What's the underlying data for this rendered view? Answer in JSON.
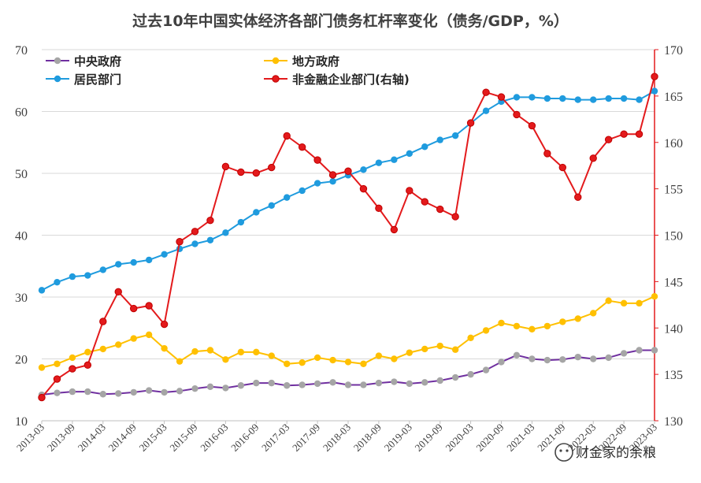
{
  "chart_data": {
    "type": "line",
    "title": "过去10年中国实体经济各部门债务杠杆率变化（债务/GDP，%）",
    "x": [
      "2013-03",
      "2013-06",
      "2013-09",
      "2013-12",
      "2014-03",
      "2014-06",
      "2014-09",
      "2014-12",
      "2015-03",
      "2015-06",
      "2015-09",
      "2015-12",
      "2016-03",
      "2016-06",
      "2016-09",
      "2016-12",
      "2017-03",
      "2017-06",
      "2017-09",
      "2017-12",
      "2018-03",
      "2018-06",
      "2018-09",
      "2018-12",
      "2019-03",
      "2019-06",
      "2019-09",
      "2019-12",
      "2020-03",
      "2020-06",
      "2020-09",
      "2020-12",
      "2021-03",
      "2021-06",
      "2021-09",
      "2021-12",
      "2022-03",
      "2022-06",
      "2022-09",
      "2022-12",
      "2023-03"
    ],
    "xticks": [
      "2013-03",
      "2013-09",
      "2014-03",
      "2014-09",
      "2015-03",
      "2015-09",
      "2016-03",
      "2016-09",
      "2017-03",
      "2017-09",
      "2018-03",
      "2018-09",
      "2019-03",
      "2019-09",
      "2020-03",
      "2020-09",
      "2021-03",
      "2021-09",
      "2022-03",
      "2022-09",
      "2023-03"
    ],
    "ylim": [
      10,
      70
    ],
    "yticks": [
      10,
      20,
      30,
      40,
      50,
      60,
      70
    ],
    "y2lim": [
      130,
      170
    ],
    "y2ticks": [
      130,
      135,
      140,
      145,
      150,
      155,
      160,
      165,
      170
    ],
    "grid": true,
    "legend_position": "top",
    "series": [
      {
        "name": "中央政府",
        "axis": "left",
        "color": "#7030a0",
        "marker_color": "#a5a5a5",
        "values": [
          14.2,
          14.5,
          14.7,
          14.7,
          14.3,
          14.4,
          14.6,
          14.9,
          14.6,
          14.8,
          15.2,
          15.5,
          15.3,
          15.7,
          16.1,
          16.1,
          15.7,
          15.8,
          16.0,
          16.2,
          15.8,
          15.8,
          16.1,
          16.3,
          16.0,
          16.2,
          16.5,
          17.0,
          17.5,
          18.2,
          19.5,
          20.6,
          20.0,
          19.8,
          19.9,
          20.3,
          20.0,
          20.2,
          20.9,
          21.4,
          21.4
        ]
      },
      {
        "name": "地方政府",
        "axis": "left",
        "color": "#ffc000",
        "marker_color": "#ffc000",
        "values": [
          18.6,
          19.2,
          20.2,
          21.1,
          21.6,
          22.3,
          23.3,
          23.9,
          21.7,
          19.6,
          21.2,
          21.4,
          19.9,
          21.1,
          21.1,
          20.5,
          19.2,
          19.4,
          20.2,
          19.8,
          19.5,
          19.2,
          20.5,
          20.0,
          21.0,
          21.6,
          22.1,
          21.5,
          23.4,
          24.6,
          25.8,
          25.3,
          24.8,
          25.3,
          26.0,
          26.5,
          27.4,
          29.4,
          29.0,
          29.0,
          30.1
        ]
      },
      {
        "name": "居民部门",
        "axis": "left",
        "color": "#1f9bde",
        "marker_color": "#1f9bde",
        "values": [
          31.1,
          32.4,
          33.3,
          33.5,
          34.4,
          35.3,
          35.6,
          36.0,
          36.9,
          37.8,
          38.6,
          39.2,
          40.4,
          42.1,
          43.7,
          44.8,
          46.1,
          47.2,
          48.4,
          48.7,
          49.7,
          50.6,
          51.7,
          52.2,
          53.2,
          54.3,
          55.4,
          56.1,
          58.1,
          60.1,
          61.6,
          62.3,
          62.3,
          62.1,
          62.1,
          61.9,
          61.9,
          62.1,
          62.1,
          61.9,
          63.3
        ]
      },
      {
        "name": "非金融企业部门(右轴)",
        "axis": "right",
        "color": "#e31a1c",
        "marker_color": "#e31a1c",
        "values": [
          132.5,
          134.5,
          135.6,
          136.0,
          140.7,
          143.9,
          142.1,
          142.4,
          140.4,
          149.3,
          150.4,
          151.6,
          157.4,
          156.8,
          156.7,
          157.3,
          160.7,
          159.5,
          158.1,
          156.5,
          156.9,
          155.0,
          152.9,
          150.6,
          154.8,
          153.6,
          152.8,
          152.0,
          162.1,
          165.4,
          164.9,
          163.0,
          161.8,
          158.8,
          157.3,
          154.1,
          158.3,
          160.3,
          160.9,
          160.9,
          167.1
        ]
      }
    ]
  },
  "watermark": "财金家的余粮"
}
